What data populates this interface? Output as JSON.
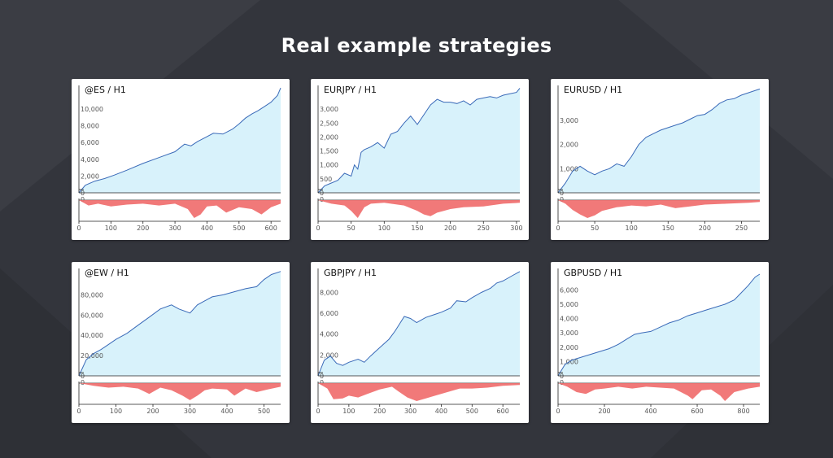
{
  "page": {
    "title": "Real example strategies"
  },
  "colors": {
    "background": "#33353c",
    "equity_line": "#3a6ab8",
    "equity_fill": "#d8f2fb",
    "drawdown": "#f06a6a"
  },
  "chart_data": [
    {
      "type": "area",
      "title": "@ES / H1",
      "x_ticks": [
        0,
        100,
        200,
        300,
        400,
        500,
        600
      ],
      "xlim": [
        0,
        630
      ],
      "y_ticks": [
        0,
        2000,
        4000,
        6000,
        8000,
        10000
      ],
      "y_tick_labels": [
        "0",
        "2,000",
        "4,000",
        "6,000",
        "8,000",
        "10,000"
      ],
      "ylim": [
        0,
        12800
      ],
      "series": [
        {
          "x": [
            0,
            20,
            50,
            80,
            110,
            150,
            200,
            250,
            300,
            330,
            350,
            370,
            400,
            420,
            450,
            480,
            500,
            520,
            540,
            560,
            580,
            600,
            620,
            630
          ],
          "values": [
            0,
            900,
            1400,
            1700,
            2100,
            2700,
            3500,
            4200,
            4900,
            5800,
            5600,
            6100,
            6700,
            7100,
            7000,
            7600,
            8200,
            8900,
            9400,
            9800,
            10300,
            10800,
            11600,
            12500
          ]
        }
      ],
      "drawdown": {
        "x": [
          0,
          30,
          60,
          100,
          150,
          200,
          250,
          300,
          340,
          360,
          380,
          400,
          430,
          460,
          500,
          540,
          570,
          600,
          630
        ],
        "values": [
          0,
          0.3,
          0.2,
          0.35,
          0.25,
          0.2,
          0.3,
          0.2,
          0.5,
          1.0,
          0.8,
          0.35,
          0.3,
          0.7,
          0.4,
          0.5,
          0.8,
          0.4,
          0.2
        ]
      }
    },
    {
      "type": "area",
      "title": "EURJPY / H1",
      "x_ticks": [
        0,
        50,
        100,
        150,
        200,
        250,
        300
      ],
      "xlim": [
        0,
        305
      ],
      "y_ticks": [
        0,
        500,
        1000,
        1500,
        2000,
        2500,
        3000
      ],
      "y_tick_labels": [
        "0",
        "500",
        "1,000",
        "1,500",
        "2,000",
        "2,500",
        "3,000"
      ],
      "ylim": [
        0,
        3850
      ],
      "series": [
        {
          "x": [
            0,
            10,
            20,
            30,
            40,
            50,
            55,
            60,
            65,
            70,
            80,
            90,
            100,
            110,
            120,
            130,
            140,
            150,
            160,
            170,
            180,
            190,
            200,
            210,
            220,
            230,
            240,
            250,
            260,
            270,
            280,
            290,
            300,
            305
          ],
          "values": [
            0,
            250,
            350,
            450,
            700,
            600,
            1000,
            850,
            1450,
            1550,
            1650,
            1800,
            1600,
            2100,
            2200,
            2500,
            2750,
            2450,
            2800,
            3150,
            3350,
            3250,
            3250,
            3200,
            3300,
            3150,
            3350,
            3400,
            3450,
            3400,
            3500,
            3550,
            3600,
            3750
          ]
        }
      ],
      "drawdown": {
        "x": [
          0,
          20,
          40,
          50,
          60,
          70,
          80,
          100,
          130,
          150,
          160,
          170,
          180,
          190,
          200,
          220,
          250,
          280,
          305
        ],
        "values": [
          0,
          0.2,
          0.3,
          0.6,
          1.0,
          0.4,
          0.2,
          0.15,
          0.3,
          0.6,
          0.8,
          0.9,
          0.7,
          0.6,
          0.5,
          0.4,
          0.35,
          0.2,
          0.15
        ]
      }
    },
    {
      "type": "area",
      "title": "EURUSD / H1",
      "x_ticks": [
        0,
        50,
        100,
        150,
        200,
        250
      ],
      "xlim": [
        0,
        275
      ],
      "y_ticks": [
        0,
        1000,
        2000,
        3000
      ],
      "y_tick_labels": [
        "0",
        "1,000",
        "2,000",
        "3,000"
      ],
      "ylim": [
        0,
        4450
      ],
      "series": [
        {
          "x": [
            0,
            10,
            20,
            30,
            40,
            50,
            60,
            70,
            80,
            90,
            100,
            110,
            120,
            130,
            140,
            150,
            160,
            170,
            180,
            190,
            200,
            210,
            220,
            230,
            240,
            250,
            260,
            275
          ],
          "values": [
            0,
            400,
            900,
            1100,
            900,
            750,
            900,
            1000,
            1200,
            1100,
            1500,
            2000,
            2300,
            2450,
            2600,
            2700,
            2800,
            2900,
            3050,
            3200,
            3250,
            3450,
            3700,
            3850,
            3900,
            4050,
            4150,
            4300
          ]
        }
      ],
      "drawdown": {
        "x": [
          0,
          10,
          20,
          30,
          40,
          50,
          60,
          70,
          80,
          100,
          120,
          140,
          160,
          180,
          200,
          230,
          260,
          275
        ],
        "values": [
          0,
          0.2,
          0.55,
          0.8,
          1.0,
          0.85,
          0.6,
          0.5,
          0.4,
          0.3,
          0.35,
          0.25,
          0.45,
          0.35,
          0.25,
          0.2,
          0.15,
          0.1
        ]
      }
    },
    {
      "type": "area",
      "title": "@EW / H1",
      "x_ticks": [
        0,
        100,
        200,
        300,
        400,
        500
      ],
      "xlim": [
        0,
        545
      ],
      "y_ticks": [
        0,
        20000,
        40000,
        60000,
        80000
      ],
      "y_tick_labels": [
        "0",
        "20,000",
        "40,000",
        "60,000",
        "80,000"
      ],
      "ylim": [
        0,
        106000
      ],
      "series": [
        {
          "x": [
            0,
            20,
            40,
            60,
            80,
            100,
            130,
            160,
            190,
            220,
            250,
            270,
            300,
            320,
            340,
            360,
            390,
            420,
            450,
            480,
            500,
            520,
            545
          ],
          "values": [
            0,
            16000,
            22000,
            26000,
            31000,
            36000,
            42000,
            50000,
            58000,
            66000,
            70000,
            66000,
            62000,
            70000,
            74000,
            78000,
            80000,
            83000,
            86000,
            88000,
            95000,
            100000,
            103000
          ]
        }
      ],
      "drawdown": {
        "x": [
          0,
          40,
          80,
          120,
          160,
          190,
          220,
          250,
          280,
          300,
          320,
          340,
          360,
          400,
          420,
          450,
          480,
          510,
          545
        ],
        "values": [
          0,
          0.15,
          0.25,
          0.2,
          0.3,
          0.6,
          0.25,
          0.4,
          0.7,
          0.95,
          0.7,
          0.4,
          0.3,
          0.35,
          0.7,
          0.3,
          0.5,
          0.35,
          0.2
        ]
      }
    },
    {
      "type": "area",
      "title": "GBPJPY / H1",
      "x_ticks": [
        0,
        100,
        200,
        300,
        400,
        500,
        600
      ],
      "xlim": [
        0,
        655
      ],
      "y_ticks": [
        0,
        2000,
        4000,
        6000,
        8000
      ],
      "y_tick_labels": [
        "0",
        "2,000",
        "4,000",
        "6,000",
        "8,000"
      ],
      "ylim": [
        0,
        10300
      ],
      "series": [
        {
          "x": [
            0,
            20,
            40,
            60,
            80,
            100,
            130,
            150,
            170,
            200,
            230,
            250,
            280,
            300,
            320,
            350,
            380,
            400,
            430,
            450,
            480,
            500,
            530,
            560,
            580,
            600,
            630,
            655
          ],
          "values": [
            0,
            1500,
            1900,
            1200,
            1000,
            1300,
            1600,
            1300,
            1900,
            2700,
            3500,
            4300,
            5700,
            5500,
            5100,
            5600,
            5900,
            6100,
            6500,
            7200,
            7100,
            7500,
            8000,
            8400,
            8900,
            9100,
            9600,
            10000
          ]
        }
      ],
      "drawdown": {
        "x": [
          0,
          30,
          50,
          80,
          100,
          130,
          160,
          200,
          240,
          260,
          290,
          320,
          350,
          380,
          420,
          460,
          500,
          550,
          600,
          655
        ],
        "values": [
          0,
          0.3,
          0.9,
          0.85,
          0.7,
          0.8,
          0.6,
          0.35,
          0.2,
          0.45,
          0.8,
          1.0,
          0.85,
          0.7,
          0.5,
          0.3,
          0.3,
          0.25,
          0.15,
          0.1
        ]
      }
    },
    {
      "type": "area",
      "title": "GBPUSD / H1",
      "x_ticks": [
        0,
        200,
        400,
        600,
        800
      ],
      "xlim": [
        0,
        870
      ],
      "y_ticks": [
        0,
        1000,
        2000,
        3000,
        4000,
        5000,
        6000
      ],
      "y_tick_labels": [
        "0",
        "1,000",
        "2,000",
        "3,000",
        "4,000",
        "5,000",
        "6,000"
      ],
      "ylim": [
        0,
        7500
      ],
      "series": [
        {
          "x": [
            0,
            30,
            60,
            100,
            140,
            180,
            220,
            260,
            300,
            330,
            360,
            400,
            440,
            480,
            520,
            560,
            600,
            640,
            680,
            720,
            760,
            790,
            820,
            850,
            870
          ],
          "values": [
            0,
            800,
            1100,
            1300,
            1500,
            1700,
            1900,
            2200,
            2600,
            2900,
            3000,
            3100,
            3400,
            3700,
            3900,
            4200,
            4400,
            4600,
            4800,
            5000,
            5300,
            5800,
            6300,
            6900,
            7100
          ]
        }
      ],
      "drawdown": {
        "x": [
          0,
          40,
          80,
          120,
          160,
          200,
          260,
          320,
          380,
          440,
          500,
          560,
          580,
          620,
          660,
          700,
          720,
          760,
          820,
          870
        ],
        "values": [
          0,
          0.2,
          0.5,
          0.6,
          0.35,
          0.3,
          0.2,
          0.3,
          0.2,
          0.25,
          0.3,
          0.7,
          0.9,
          0.4,
          0.35,
          0.7,
          1.0,
          0.5,
          0.3,
          0.2
        ]
      }
    }
  ]
}
